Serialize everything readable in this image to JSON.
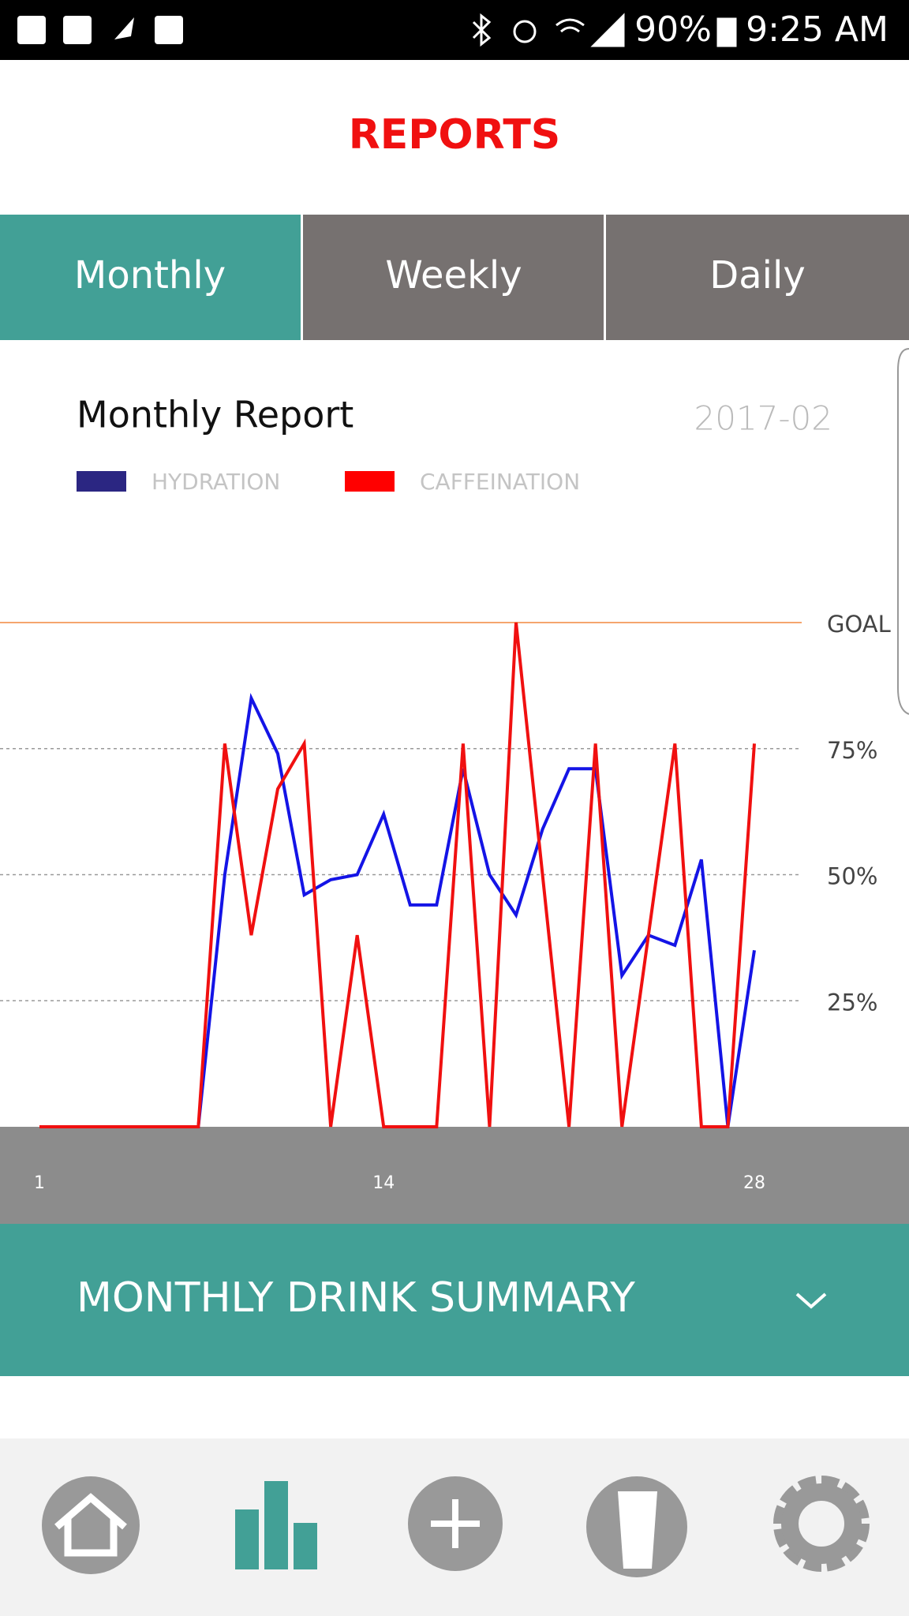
{
  "status_bar": {
    "battery": "90%",
    "time": "9:25 AM"
  },
  "header": {
    "title": "REPORTS"
  },
  "tabs": [
    "Monthly",
    "Weekly",
    "Daily"
  ],
  "chart_data": {
    "type": "line",
    "title": "Monthly Report",
    "subtitle": "2017-02",
    "x": [
      1,
      2,
      3,
      4,
      5,
      6,
      7,
      8,
      9,
      10,
      11,
      12,
      13,
      14,
      15,
      16,
      17,
      18,
      19,
      20,
      21,
      22,
      23,
      24,
      25,
      26,
      27,
      28
    ],
    "series": [
      {
        "name": "HYDRATION",
        "color": "#1414e6",
        "legend_color": "#2b2682",
        "values": [
          0,
          0,
          0,
          0,
          0,
          0,
          0,
          50,
          85,
          74,
          46,
          49,
          50,
          62,
          44,
          44,
          71,
          50,
          42,
          59,
          71,
          71,
          30,
          38,
          36,
          53,
          0,
          35
        ]
      },
      {
        "name": "CAFFEINATION",
        "color": "#f01010",
        "legend_color": "#ff0000",
        "values": [
          0,
          0,
          0,
          0,
          0,
          0,
          0,
          76,
          38,
          67,
          76,
          0,
          38,
          0,
          0,
          0,
          76,
          0,
          100,
          50,
          0,
          76,
          0,
          38,
          76,
          0,
          0,
          76
        ]
      }
    ],
    "xlim": [
      1,
      28
    ],
    "xticks": [
      1,
      14,
      28
    ],
    "ylim": [
      0,
      100
    ],
    "yticks": [
      {
        "value": 25,
        "label": "25%"
      },
      {
        "value": 50,
        "label": "50%"
      },
      {
        "value": 75,
        "label": "75%"
      },
      {
        "value": 100,
        "label": "GOAL"
      }
    ],
    "goal_color": "#f5a56e",
    "grid": true
  },
  "summary": {
    "title": "MONTHLY DRINK SUMMARY"
  }
}
